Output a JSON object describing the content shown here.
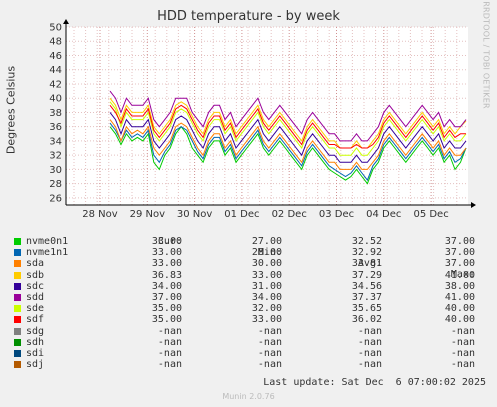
{
  "chart_data": {
    "type": "line",
    "title": "HDD temperature - by week",
    "ylabel": "Degrees Celsius",
    "xlabel": "",
    "ylim": [
      25,
      50
    ],
    "yticks": [
      26,
      28,
      30,
      32,
      34,
      36,
      38,
      40,
      42,
      44,
      46,
      48,
      50
    ],
    "xticks": [
      "28 Nov",
      "29 Nov",
      "30 Nov",
      "01 Dec",
      "02 Dec",
      "03 Dec",
      "04 Dec",
      "05 Dec"
    ],
    "grid": true,
    "columns": {
      "cur": "Cur:",
      "min": "Min:",
      "avg": "Avg:",
      "max": "Max:"
    },
    "series": [
      {
        "name": "nvme0n1",
        "color": "#00cc00",
        "cur": "33.00",
        "min": "27.00",
        "avg": "32.52",
        "max": "37.00",
        "values": [
          36,
          35,
          33.5,
          35,
          34,
          34.5,
          34,
          35,
          31,
          30,
          32,
          33,
          35,
          36,
          35,
          33,
          32,
          31,
          33,
          34,
          34,
          32,
          33,
          31,
          32,
          33,
          34,
          35,
          33,
          32,
          33,
          34,
          33,
          32,
          31,
          30,
          32,
          33,
          32,
          31,
          30,
          29.5,
          29,
          28.5,
          29,
          30,
          29,
          28,
          30,
          31,
          33,
          34,
          33,
          32,
          31,
          32,
          33,
          34,
          33,
          32,
          33,
          31,
          32,
          30,
          31,
          33
        ]
      },
      {
        "name": "nvme1n1",
        "color": "#0066b3",
        "cur": "33.00",
        "min": "28.00",
        "avg": "32.92",
        "max": "37.00",
        "values": [
          36.5,
          35.5,
          34,
          35.5,
          34.5,
          35,
          34.5,
          35.5,
          32,
          31,
          32.5,
          33.5,
          35.5,
          36,
          35.5,
          34,
          32.5,
          31.5,
          33.5,
          34.5,
          34.5,
          32.5,
          33.5,
          31.5,
          32.5,
          33.5,
          34.5,
          35.5,
          33.5,
          32.5,
          33.5,
          34.5,
          33.5,
          32.5,
          31.5,
          30.5,
          32.5,
          33.5,
          32.5,
          31.5,
          30.5,
          30,
          29.5,
          29,
          29.5,
          30.5,
          29.5,
          28.5,
          30.5,
          31.5,
          33.5,
          34.5,
          33.5,
          32.5,
          31.5,
          32.5,
          33.5,
          34.5,
          33.5,
          32.5,
          33.5,
          31.5,
          32.5,
          31,
          31.5,
          33
        ]
      },
      {
        "name": "sda",
        "color": "#ff8000",
        "cur": "33.00",
        "min": "30.00",
        "avg": "33.81",
        "max": "37.00",
        "values": [
          37,
          36,
          34,
          36,
          35,
          35.5,
          35,
          36,
          33,
          32,
          33,
          34,
          36,
          36.5,
          36,
          34.5,
          33,
          32,
          34,
          35,
          35,
          33,
          34,
          32,
          33,
          34,
          35,
          36,
          34,
          33,
          34,
          35,
          34,
          33,
          32,
          31,
          33,
          34,
          33,
          32,
          31,
          31,
          30,
          30,
          30,
          31,
          30,
          30,
          31,
          32,
          34,
          35,
          34,
          33,
          32,
          33,
          34,
          35,
          34,
          33,
          34,
          32,
          33,
          32,
          32,
          33
        ]
      },
      {
        "name": "sdb",
        "color": "#ffcc00",
        "cur": "36.83",
        "min": "33.00",
        "avg": "37.29",
        "max": "41.00",
        "values": [
          40,
          39,
          37,
          39,
          38,
          38,
          38,
          39,
          36,
          35,
          36,
          37,
          39,
          39.5,
          39,
          37.5,
          36,
          35,
          37,
          38,
          38,
          36,
          37,
          35,
          36,
          37,
          38,
          39,
          37,
          36,
          37,
          38,
          37,
          36,
          35,
          34,
          36,
          37,
          36,
          35,
          34,
          34,
          33,
          33,
          33,
          34,
          33,
          33,
          34,
          35,
          37,
          38,
          37,
          36,
          35,
          36,
          37,
          38,
          37,
          36,
          37,
          35,
          36,
          35,
          36,
          36.8
        ]
      },
      {
        "name": "sdc",
        "color": "#330099",
        "cur": "34.00",
        "min": "31.00",
        "avg": "34.56",
        "max": "38.00",
        "values": [
          38,
          37,
          35,
          37,
          36,
          36,
          36,
          37,
          34,
          33,
          34,
          35,
          37,
          37.5,
          37,
          35.5,
          34,
          33,
          35,
          36,
          36,
          34,
          35,
          33,
          34,
          35,
          36,
          37,
          35,
          34,
          35,
          36,
          35,
          34,
          33,
          32,
          34,
          35,
          34,
          33,
          32,
          32,
          31,
          31,
          31,
          32,
          31,
          31,
          32,
          33,
          35,
          36,
          35,
          34,
          33,
          34,
          35,
          36,
          35,
          34,
          35,
          33,
          34,
          33,
          33,
          34
        ]
      },
      {
        "name": "sdd",
        "color": "#990099",
        "cur": "37.00",
        "min": "34.00",
        "avg": "37.37",
        "max": "41.00",
        "values": [
          41,
          40,
          38,
          40,
          39,
          39,
          39,
          40,
          37,
          36,
          37,
          38,
          40,
          40,
          40,
          38,
          37,
          36,
          38,
          39,
          39,
          37,
          38,
          36,
          37,
          38,
          39,
          40,
          38,
          37,
          38,
          39,
          38,
          37,
          36,
          35,
          37,
          38,
          37,
          36,
          35,
          35,
          34,
          34,
          34,
          35,
          34,
          34,
          35,
          36,
          38,
          39,
          38,
          37,
          36,
          37,
          38,
          39,
          38,
          37,
          38,
          36,
          37,
          36,
          36,
          37
        ]
      },
      {
        "name": "sde",
        "color": "#ccff00",
        "cur": "35.00",
        "min": "32.00",
        "avg": "35.65",
        "max": "40.00",
        "values": [
          39.5,
          38.5,
          36,
          38,
          37,
          37,
          37,
          38,
          35,
          34,
          35,
          36,
          38,
          38.5,
          38,
          36.5,
          35,
          34,
          36,
          37,
          37,
          35,
          36,
          34,
          35,
          36,
          37,
          38,
          36,
          35,
          36,
          37,
          36,
          35,
          34,
          33,
          35,
          36,
          35,
          34,
          33,
          33,
          32,
          32,
          32,
          33,
          32,
          32,
          33,
          34,
          36,
          37,
          36,
          35,
          34,
          35,
          36,
          37,
          36,
          35,
          36,
          34,
          35,
          34,
          34,
          35
        ]
      },
      {
        "name": "sdf",
        "color": "#ff0000",
        "cur": "35.00",
        "min": "33.00",
        "avg": "36.02",
        "max": "40.00",
        "values": [
          39,
          38,
          36.5,
          38.5,
          37.5,
          37.5,
          37.5,
          38.5,
          35.5,
          34.5,
          35.5,
          36.5,
          38.5,
          39,
          38.5,
          37,
          35.5,
          34.5,
          36.5,
          37.5,
          37.5,
          35.5,
          36.5,
          34.5,
          35.5,
          36.5,
          37.5,
          38.5,
          36.5,
          35.5,
          36.5,
          37.5,
          36.5,
          35.5,
          34.5,
          33.5,
          35.5,
          36.5,
          35.5,
          34.5,
          33.5,
          33.5,
          33,
          33,
          33,
          33.5,
          33,
          33,
          33.5,
          34.5,
          36.5,
          37.5,
          36.5,
          35.5,
          34.5,
          35.5,
          36.5,
          37.5,
          36.5,
          35.5,
          36.5,
          34.5,
          35.5,
          34.5,
          35,
          35
        ]
      },
      {
        "name": "sdg",
        "color": "#808080",
        "cur": "-nan",
        "min": "-nan",
        "avg": "-nan",
        "max": "-nan",
        "values": []
      },
      {
        "name": "sdh",
        "color": "#008f00",
        "cur": "-nan",
        "min": "-nan",
        "avg": "-nan",
        "max": "-nan",
        "values": []
      },
      {
        "name": "sdi",
        "color": "#00487d",
        "cur": "-nan",
        "min": "-nan",
        "avg": "-nan",
        "max": "-nan",
        "values": []
      },
      {
        "name": "sdj",
        "color": "#b35a00",
        "cur": "-nan",
        "min": "-nan",
        "avg": "-nan",
        "max": "-nan",
        "values": []
      }
    ]
  },
  "side_text": "RRDTOOL / TOBI OETIKER",
  "last_update": "Last update: Sat Dec  6 07:00:02 2025",
  "version": "Munin 2.0.76"
}
